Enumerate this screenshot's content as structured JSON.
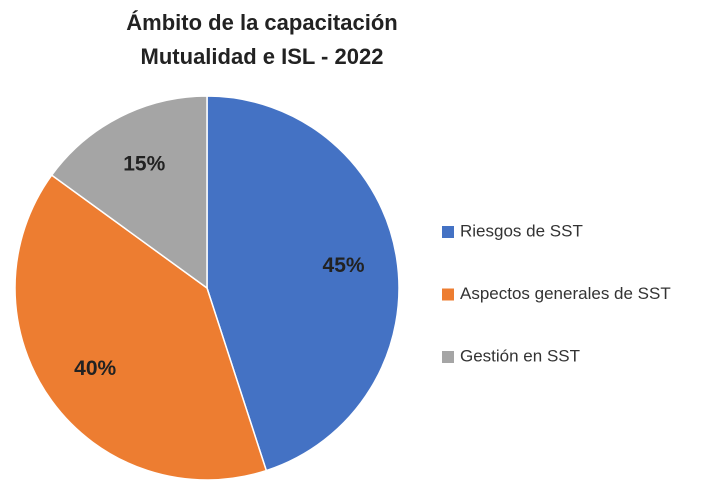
{
  "chart_data": {
    "type": "pie",
    "title": [
      "Ámbito de la capacitación",
      "Mutualidad e ISL - 2022"
    ],
    "categories": [
      "Riesgos de SST",
      "Aspectos generales de SST",
      "Gestión en SST"
    ],
    "values": [
      45,
      40,
      15
    ],
    "value_labels": [
      "45%",
      "40%",
      "15%"
    ],
    "colors": [
      "#4472c4",
      "#ed7d31",
      "#a5a5a5"
    ],
    "legend": "right"
  }
}
